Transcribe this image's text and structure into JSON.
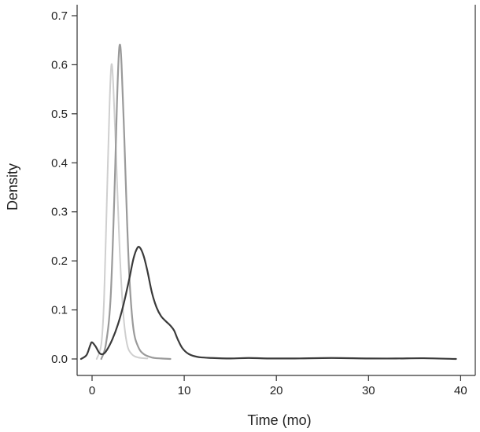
{
  "chart_data": {
    "type": "line",
    "title": "",
    "xlabel": "Time (mo)",
    "ylabel": "Density",
    "xlim": [
      -1.5,
      41.8
    ],
    "ylim": [
      -0.02,
      0.73
    ],
    "x_ticks": [
      0,
      10,
      20,
      30,
      40
    ],
    "y_ticks": [
      0.0,
      0.1,
      0.2,
      0.3,
      0.4,
      0.5,
      0.6,
      0.7
    ],
    "x_tick_labels": [
      "0",
      "10",
      "20",
      "30",
      "40"
    ],
    "y_tick_labels": [
      "0.0",
      "0.1",
      "0.2",
      "0.3",
      "0.4",
      "0.5",
      "0.6",
      "0.7"
    ],
    "grid": false,
    "legend": "none",
    "series": [
      {
        "color": "#cfcfcf",
        "stroke_width": 2,
        "points": [
          [
            0.5,
            0.0
          ],
          [
            1.0,
            0.03
          ],
          [
            1.3,
            0.12
          ],
          [
            1.6,
            0.32
          ],
          [
            1.9,
            0.52
          ],
          [
            2.1,
            0.6
          ],
          [
            2.3,
            0.56
          ],
          [
            2.6,
            0.42
          ],
          [
            3.0,
            0.22
          ],
          [
            3.4,
            0.09
          ],
          [
            3.8,
            0.03
          ],
          [
            4.3,
            0.01
          ],
          [
            5.0,
            0.003
          ],
          [
            6.0,
            0.001
          ]
        ]
      },
      {
        "color": "#9a9a9a",
        "stroke_width": 2.2,
        "points": [
          [
            1.0,
            0.0
          ],
          [
            1.5,
            0.03
          ],
          [
            2.0,
            0.12
          ],
          [
            2.4,
            0.32
          ],
          [
            2.7,
            0.52
          ],
          [
            2.9,
            0.62
          ],
          [
            3.05,
            0.64
          ],
          [
            3.2,
            0.6
          ],
          [
            3.5,
            0.45
          ],
          [
            3.8,
            0.28
          ],
          [
            4.1,
            0.15
          ],
          [
            4.5,
            0.06
          ],
          [
            5.0,
            0.025
          ],
          [
            5.6,
            0.01
          ],
          [
            6.5,
            0.003
          ],
          [
            7.5,
            0.001
          ],
          [
            8.5,
            0.0
          ]
        ]
      },
      {
        "color": "#3a3a3a",
        "stroke_width": 2.2,
        "points": [
          [
            -1.2,
            0.0
          ],
          [
            -0.6,
            0.008
          ],
          [
            -0.2,
            0.028
          ],
          [
            0.0,
            0.034
          ],
          [
            0.4,
            0.025
          ],
          [
            0.8,
            0.012
          ],
          [
            1.2,
            0.01
          ],
          [
            1.6,
            0.018
          ],
          [
            2.2,
            0.04
          ],
          [
            2.8,
            0.07
          ],
          [
            3.4,
            0.11
          ],
          [
            4.0,
            0.16
          ],
          [
            4.5,
            0.205
          ],
          [
            4.9,
            0.226
          ],
          [
            5.2,
            0.227
          ],
          [
            5.6,
            0.21
          ],
          [
            6.0,
            0.18
          ],
          [
            6.5,
            0.135
          ],
          [
            7.0,
            0.105
          ],
          [
            7.5,
            0.087
          ],
          [
            8.0,
            0.077
          ],
          [
            8.5,
            0.068
          ],
          [
            8.9,
            0.058
          ],
          [
            9.3,
            0.04
          ],
          [
            9.8,
            0.022
          ],
          [
            10.5,
            0.01
          ],
          [
            11.5,
            0.004
          ],
          [
            13,
            0.002
          ],
          [
            15,
            0.001
          ],
          [
            17,
            0.002
          ],
          [
            19,
            0.001
          ],
          [
            22,
            0.001
          ],
          [
            26,
            0.002
          ],
          [
            30,
            0.001
          ],
          [
            33,
            0.001
          ],
          [
            36,
            0.0015
          ],
          [
            39.5,
            0.0
          ]
        ]
      }
    ]
  }
}
